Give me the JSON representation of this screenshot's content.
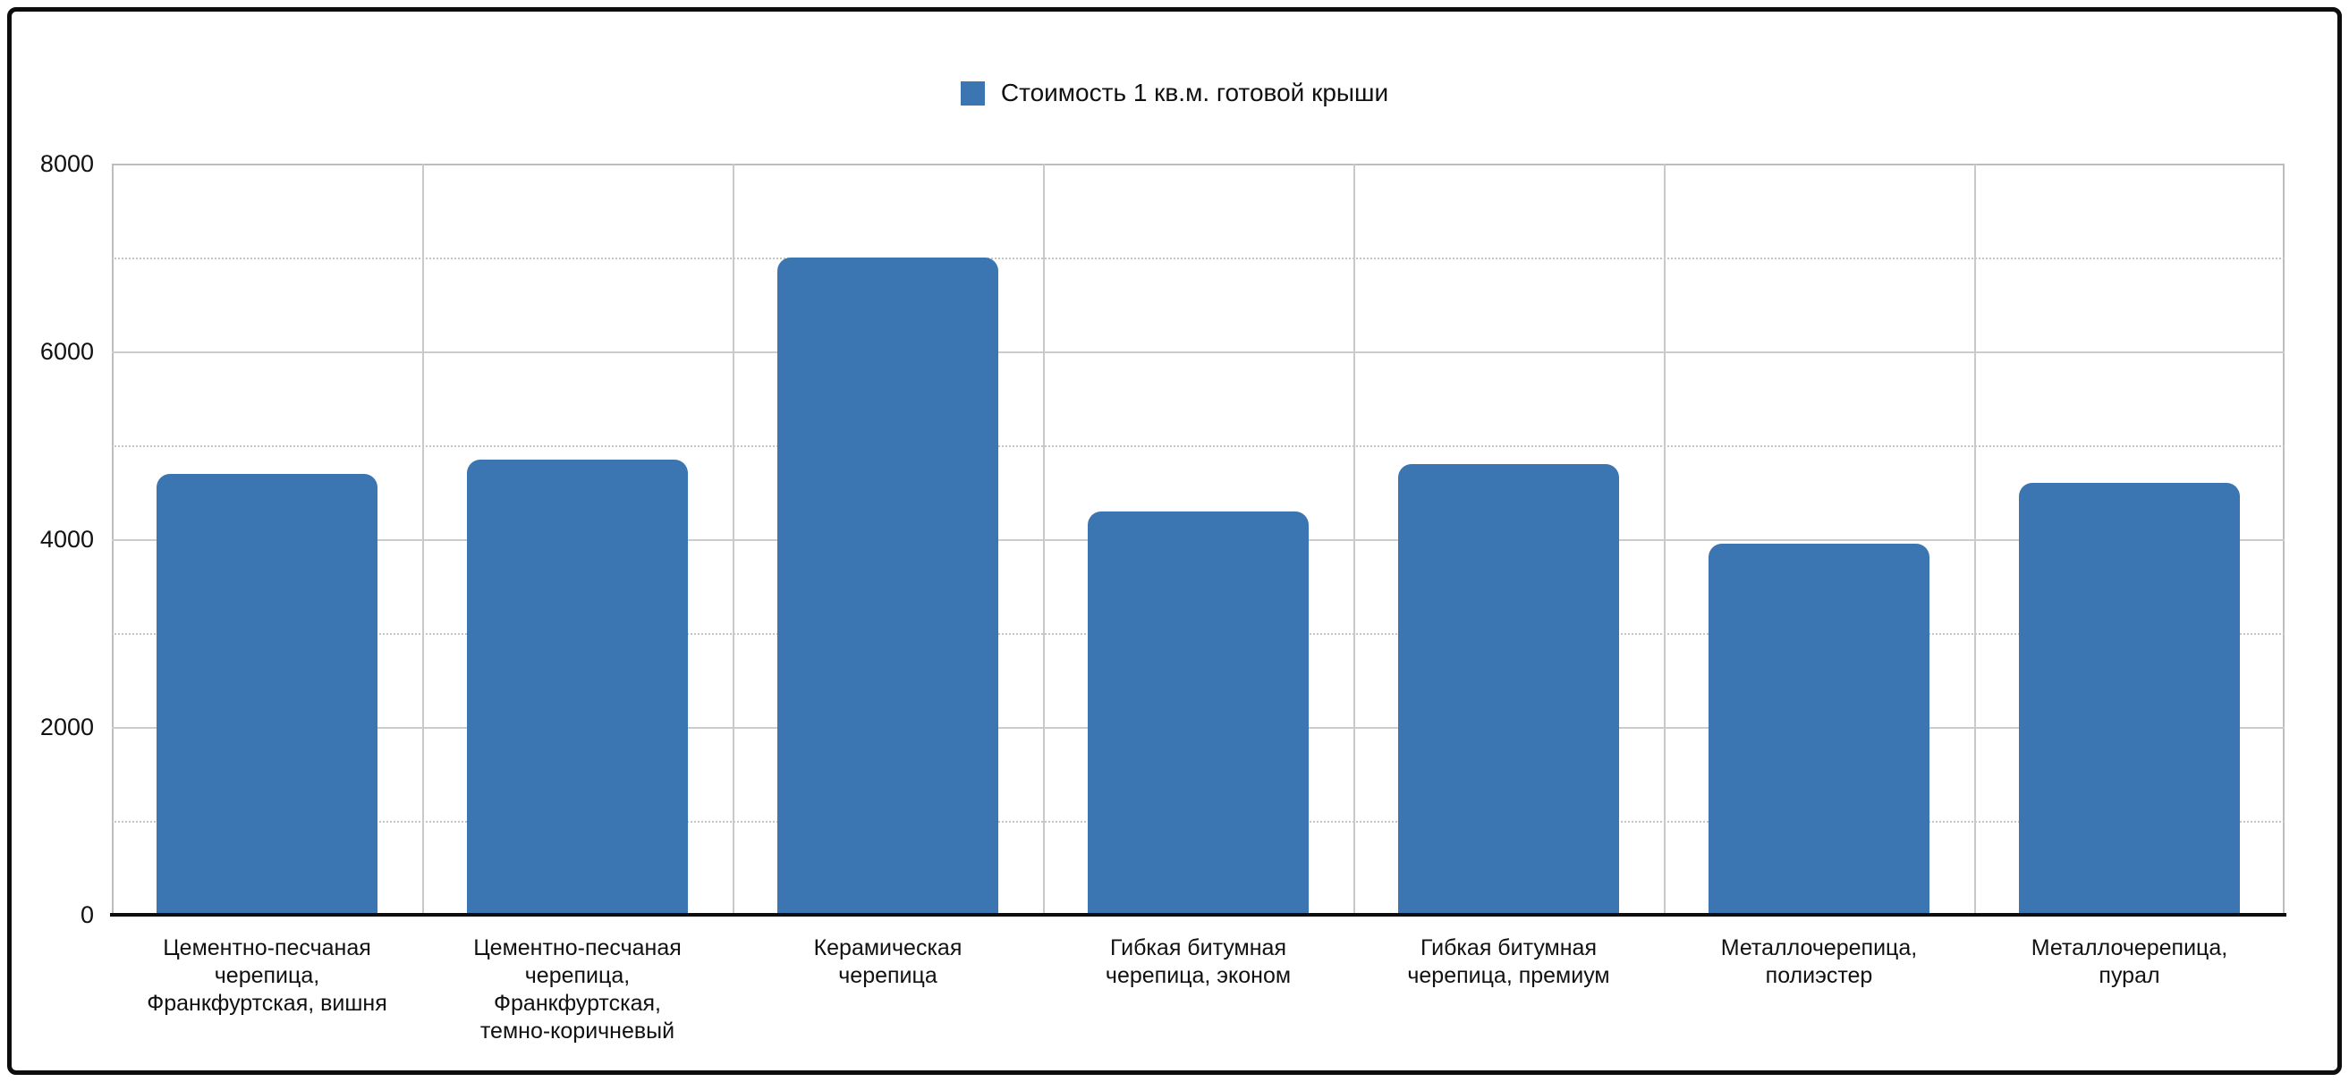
{
  "chart_data": {
    "type": "bar",
    "title": "",
    "xlabel": "",
    "ylabel": "",
    "legend": [
      "Стоимость 1 кв.м. готовой крыши"
    ],
    "legend_position": "top-center",
    "categories": [
      "Цементно-песчаная\nчерепица,\nФранкфуртская, вишня",
      "Цементно-песчаная\nчерепица,\nФранкфуртская,\nтемно-коричневый",
      "Керамическая\nчерепица",
      "Гибкая битумная\nчерепица, эконом",
      "Гибкая битумная\nчерепица, премиум",
      "Металлочерепица,\nполиэстер",
      "Металлочерепица,\nпурал"
    ],
    "values": [
      4700,
      4850,
      7000,
      4300,
      4800,
      3950,
      4600
    ],
    "ylim": [
      0,
      8000
    ],
    "yticks": [
      0,
      2000,
      4000,
      6000,
      8000
    ],
    "minor_gridlines": [
      1000,
      3000,
      5000,
      7000
    ],
    "grid": "horizontal: major solid + minor dotted; vertical: category separators solid",
    "bar_color": "#3b76b2"
  },
  "colors": {
    "bar": "#3b76b2",
    "gridline_major": "#cccccc",
    "gridline_minor": "#c4c4c4",
    "plot_border": "#bdbdbd",
    "axis": "#0d0d0d",
    "text": "#111111",
    "background": "#ffffff"
  }
}
